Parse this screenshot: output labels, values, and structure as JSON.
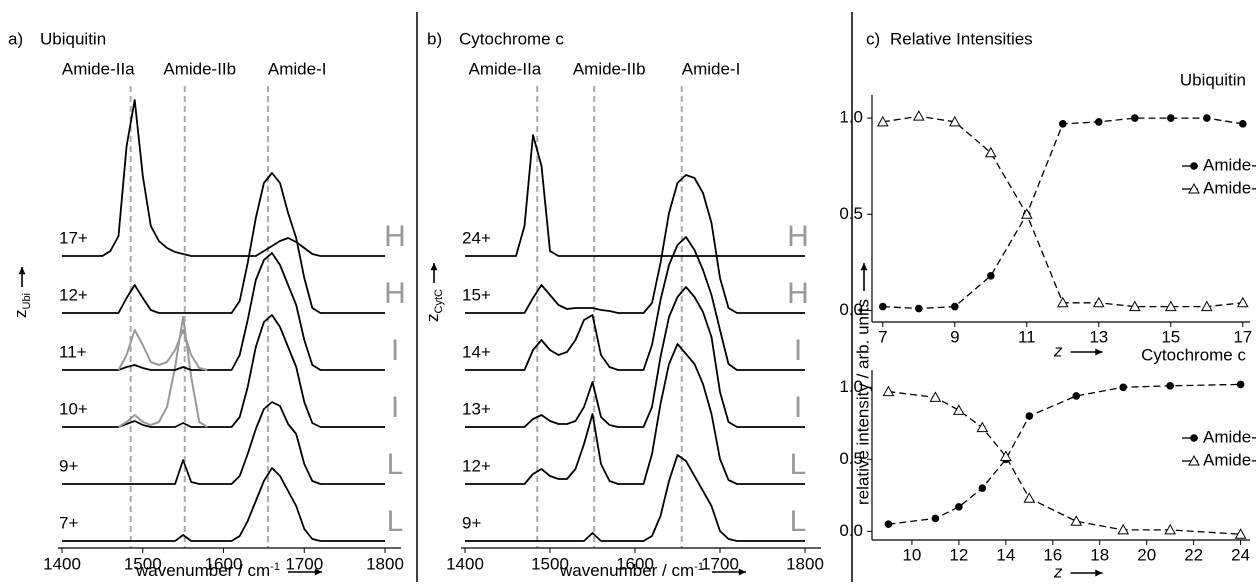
{
  "chart_data": [
    {
      "type": "spectra",
      "panel": "a)",
      "title": "Ubiquitin",
      "ylabel": "z",
      "ylabel_sub": "Ubi",
      "xlabel": "wavenumber / cm",
      "xlabel_sup": "-1",
      "xlim": [
        1400,
        1800
      ],
      "xticks": [
        1400,
        1500,
        1600,
        1700,
        1800
      ],
      "markers": [
        {
          "label": "Amide-IIa",
          "value": 1485
        },
        {
          "label": "Amide-IIb",
          "value": 1552
        },
        {
          "label": "Amide-I",
          "value": 1655
        }
      ],
      "x": [
        1400,
        1410,
        1420,
        1430,
        1440,
        1450,
        1460,
        1470,
        1480,
        1490,
        1500,
        1510,
        1520,
        1530,
        1540,
        1550,
        1560,
        1570,
        1580,
        1590,
        1600,
        1610,
        1620,
        1630,
        1640,
        1650,
        1660,
        1670,
        1680,
        1690,
        1700,
        1710,
        1720,
        1730,
        1740,
        1750,
        1760,
        1770,
        1780,
        1790,
        1800
      ],
      "series": [
        {
          "name": "7+",
          "state": "L",
          "color": "#000000",
          "values": [
            0,
            0,
            0,
            0,
            0,
            0,
            0,
            0,
            0,
            0,
            0,
            0,
            0,
            0,
            0,
            0.06,
            0,
            0,
            0,
            0,
            0,
            0,
            0.05,
            0.2,
            0.4,
            0.6,
            0.73,
            0.65,
            0.5,
            0.35,
            0.12,
            0.02,
            0,
            0,
            0,
            0,
            0,
            0,
            0,
            0,
            0
          ]
        },
        {
          "name": "9+",
          "state": "L",
          "color": "#000000",
          "values": [
            0,
            0,
            0,
            0,
            0,
            0,
            0,
            0,
            0,
            0,
            0,
            0,
            0,
            0,
            0,
            0.24,
            0.02,
            0,
            0,
            0,
            0,
            0,
            0.08,
            0.3,
            0.55,
            0.75,
            0.82,
            0.78,
            0.6,
            0.5,
            0.2,
            0.03,
            0,
            0,
            0,
            0,
            0,
            0,
            0,
            0,
            0
          ]
        },
        {
          "name": "10+",
          "state": "I",
          "color": "#000000",
          "values": [
            0,
            0,
            0,
            0,
            0,
            0,
            0,
            0,
            0.03,
            0.06,
            0.02,
            0,
            0,
            0,
            0,
            0.04,
            0,
            0,
            0,
            0,
            0,
            0,
            0.1,
            0.4,
            0.8,
            1.05,
            1.12,
            1.0,
            0.8,
            0.6,
            0.25,
            0.04,
            0,
            0,
            0,
            0,
            0,
            0,
            0,
            0,
            0
          ],
          "overlay_color": "#999999",
          "overlay_values": [
            null,
            null,
            null,
            null,
            null,
            null,
            null,
            0,
            0.05,
            0.12,
            0.05,
            0.02,
            0.05,
            0.2,
            0.6,
            1.1,
            0.5,
            0.05,
            0,
            null,
            null,
            null,
            null,
            null,
            null,
            null,
            null,
            null,
            null,
            null,
            null,
            null,
            null,
            null,
            null,
            null,
            null,
            null,
            null,
            null,
            null
          ]
        },
        {
          "name": "11+",
          "state": "I",
          "color": "#000000",
          "values": [
            0,
            0,
            0,
            0,
            0,
            0,
            0,
            0,
            0.03,
            0.05,
            0.02,
            0,
            0,
            0,
            0,
            0.03,
            0,
            0,
            0,
            0,
            0,
            0,
            0.15,
            0.5,
            0.9,
            1.1,
            1.17,
            1.05,
            0.85,
            0.65,
            0.3,
            0.05,
            0,
            0,
            0,
            0,
            0,
            0,
            0,
            0,
            0
          ],
          "overlay_color": "#999999",
          "overlay_values": [
            null,
            null,
            null,
            null,
            null,
            null,
            null,
            0,
            0.15,
            0.4,
            0.25,
            0.08,
            0.05,
            0.08,
            0.2,
            0.4,
            0.15,
            0.02,
            0,
            null,
            null,
            null,
            null,
            null,
            null,
            null,
            null,
            null,
            null,
            null,
            null,
            null,
            null,
            null,
            null,
            null,
            null,
            null,
            null,
            null,
            null
          ]
        },
        {
          "name": "12+",
          "state": "H",
          "color": "#000000",
          "values": [
            0,
            0,
            0,
            0,
            0,
            0,
            0,
            0,
            0.15,
            0.28,
            0.15,
            0.03,
            0,
            0,
            0,
            0,
            0,
            0,
            0,
            0,
            0,
            0,
            0.12,
            0.5,
            0.95,
            1.3,
            1.4,
            1.3,
            1.0,
            0.75,
            0.35,
            0.05,
            0,
            0,
            0,
            0,
            0,
            0,
            0,
            0,
            0
          ]
        },
        {
          "name": "17+",
          "state": "H",
          "color": "#000000",
          "values": [
            0,
            0,
            0,
            0,
            0,
            0,
            0.05,
            0.2,
            1.1,
            1.56,
            0.8,
            0.3,
            0.15,
            0.08,
            0.04,
            0.02,
            0,
            0,
            0,
            0,
            0,
            0,
            0,
            0,
            0,
            0.05,
            0.1,
            0.15,
            0.18,
            0.14,
            0.08,
            0.02,
            0,
            0,
            0,
            0,
            0,
            0,
            0,
            0,
            0
          ]
        }
      ]
    },
    {
      "type": "spectra",
      "panel": "b)",
      "title": "Cytochrome c",
      "ylabel": "z",
      "ylabel_sub": "CytC",
      "xlabel": "wavenumber / cm",
      "xlabel_sup": "-1",
      "xlim": [
        1400,
        1800
      ],
      "xticks": [
        1400,
        1500,
        1600,
        1700,
        1800
      ],
      "markers": [
        {
          "label": "Amide-IIa",
          "value": 1485
        },
        {
          "label": "Amide-IIb",
          "value": 1552
        },
        {
          "label": "Amide-I",
          "value": 1655
        }
      ],
      "x": [
        1400,
        1410,
        1420,
        1430,
        1440,
        1450,
        1460,
        1470,
        1480,
        1490,
        1500,
        1510,
        1520,
        1530,
        1540,
        1550,
        1560,
        1570,
        1580,
        1590,
        1600,
        1610,
        1620,
        1630,
        1640,
        1650,
        1660,
        1670,
        1680,
        1690,
        1700,
        1710,
        1720,
        1730,
        1740,
        1750,
        1760,
        1770,
        1780,
        1790,
        1800
      ],
      "series": [
        {
          "name": "9+",
          "state": "L",
          "color": "#000000",
          "values": [
            0,
            0,
            0,
            0,
            0,
            0,
            0,
            0,
            0,
            0,
            0,
            0,
            0,
            0,
            0,
            0.08,
            0,
            0,
            0,
            0,
            0,
            0,
            0.05,
            0.25,
            0.6,
            0.86,
            0.8,
            0.65,
            0.5,
            0.35,
            0.1,
            0.02,
            0,
            0,
            0,
            0,
            0,
            0,
            0,
            0,
            0
          ]
        },
        {
          "name": "12+",
          "state": "L",
          "color": "#000000",
          "values": [
            0,
            0,
            0,
            0,
            0,
            0,
            0,
            0,
            0.1,
            0.15,
            0.08,
            0.05,
            0.05,
            0.15,
            0.4,
            0.7,
            0.2,
            0.03,
            0,
            0,
            0,
            0,
            0.3,
            0.8,
            1.2,
            1.4,
            1.3,
            1.2,
            1.0,
            0.7,
            0.25,
            0.04,
            0,
            0,
            0,
            0,
            0,
            0,
            0,
            0,
            0
          ]
        },
        {
          "name": "13+",
          "state": "I",
          "color": "#000000",
          "values": [
            0,
            0,
            0,
            0,
            0,
            0,
            0,
            0,
            0.08,
            0.12,
            0.06,
            0.03,
            0.03,
            0.06,
            0.2,
            0.45,
            0.1,
            0.02,
            0,
            0,
            0,
            0,
            0.2,
            0.7,
            1.1,
            1.3,
            1.4,
            1.3,
            1.15,
            0.9,
            0.35,
            0.05,
            0,
            0,
            0,
            0,
            0,
            0,
            0,
            0,
            0
          ]
        },
        {
          "name": "14+",
          "state": "I",
          "color": "#000000",
          "values": [
            0,
            0,
            0,
            0,
            0,
            0,
            0,
            0,
            0.2,
            0.3,
            0.2,
            0.15,
            0.18,
            0.3,
            0.5,
            0.55,
            0.15,
            0.03,
            0,
            0,
            0,
            0,
            0.25,
            0.7,
            1.05,
            1.25,
            1.33,
            1.2,
            1.0,
            0.75,
            0.4,
            0.06,
            0,
            0,
            0,
            0,
            0,
            0,
            0,
            0,
            0
          ]
        },
        {
          "name": "15+",
          "state": "H",
          "color": "#000000",
          "values": [
            0,
            0,
            0,
            0,
            0,
            0,
            0,
            0,
            0.15,
            0.28,
            0.18,
            0.08,
            0.04,
            0.05,
            0.05,
            0.05,
            0.03,
            0.02,
            0,
            0,
            0,
            0,
            0.1,
            0.5,
            1.0,
            1.3,
            1.38,
            1.35,
            1.2,
            0.9,
            0.35,
            0.05,
            0,
            0,
            0,
            0,
            0,
            0,
            0,
            0,
            0
          ]
        },
        {
          "name": "24+",
          "state": "H",
          "color": "#000000",
          "values": [
            0,
            0,
            0,
            0,
            0,
            0,
            0,
            0.3,
            1.21,
            0.9,
            0.05,
            0,
            0,
            0,
            0,
            0,
            0,
            0,
            0,
            0,
            0,
            0,
            0,
            0,
            0,
            0,
            0,
            0,
            0,
            0,
            0,
            0,
            0,
            0,
            0,
            0,
            0,
            0,
            0,
            0,
            0
          ]
        }
      ]
    },
    {
      "type": "line",
      "panel": "c)",
      "title": "Relative Intensities",
      "ylabel": "relative intensity / arb. units",
      "plots": [
        {
          "title": "Ubiquitin",
          "xlabel": "z",
          "xlim": [
            6.7,
            17.2
          ],
          "xticks": [
            7,
            9,
            11,
            13,
            15,
            17
          ],
          "ylim": [
            -0.06,
            1.12
          ],
          "yticks": [
            {
              "value": 0,
              "label": "0.0"
            },
            0.5,
            {
              "value": 1,
              "label": "1.0"
            }
          ],
          "x": [
            7,
            8,
            9,
            10,
            11,
            12,
            13,
            14,
            15,
            16,
            17
          ],
          "series": [
            {
              "name": "Amide-IIa",
              "marker": "circle",
              "color": "#000000",
              "values": [
                0.02,
                0.01,
                0.02,
                0.18,
                0.5,
                0.97,
                0.98,
                1.0,
                1.0,
                1.0,
                0.97
              ]
            },
            {
              "name": "Amide-IIb",
              "marker": "triangle",
              "color": "#000000",
              "values": [
                0.98,
                1.01,
                0.98,
                0.82,
                0.5,
                0.04,
                0.04,
                0.02,
                0.02,
                0.02,
                0.04
              ]
            }
          ]
        },
        {
          "title": "Cytochrome c",
          "xlabel": "z",
          "xlim": [
            8.3,
            24.4
          ],
          "xticks": [
            10,
            12,
            14,
            16,
            18,
            20,
            22,
            24
          ],
          "ylim": [
            -0.06,
            1.12
          ],
          "yticks": [
            {
              "value": 0,
              "label": "0.0"
            },
            0.5,
            {
              "value": 1,
              "label": "1.0"
            }
          ],
          "x": [
            9,
            11,
            12,
            13,
            14,
            15,
            17,
            19,
            21,
            24
          ],
          "series": [
            {
              "name": "Amide-IIa",
              "marker": "circle",
              "color": "#000000",
              "values": [
                0.05,
                0.09,
                0.17,
                0.3,
                0.5,
                0.8,
                0.94,
                1.0,
                1.01,
                1.02
              ]
            },
            {
              "name": "Amide-IIb",
              "marker": "triangle",
              "color": "#000000",
              "values": [
                0.97,
                0.93,
                0.84,
                0.72,
                0.52,
                0.23,
                0.07,
                0.01,
                0.01,
                -0.02
              ]
            }
          ]
        }
      ]
    }
  ]
}
